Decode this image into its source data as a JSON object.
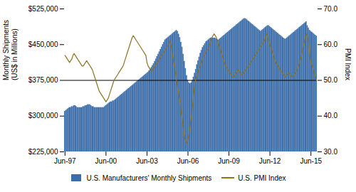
{
  "chart_data": {
    "type": "bar",
    "ylabel": "Monthly Shipments\n(US$ in Millions)",
    "y2label": "PMI Index",
    "ylim": [
      225000,
      525000
    ],
    "yticks": [
      {
        "value": 225000,
        "label": "$225,000"
      },
      {
        "value": 300000,
        "label": "$300,000"
      },
      {
        "value": 375000,
        "label": "$375,000"
      },
      {
        "value": 450000,
        "label": "$450,000"
      },
      {
        "value": 525000,
        "label": "$525,000"
      }
    ],
    "y2lim": [
      30.0,
      70.0
    ],
    "y2ticks": [
      {
        "value": 30.0,
        "label": "30.0"
      },
      {
        "value": 40.0,
        "label": "40.0"
      },
      {
        "value": 50.0,
        "label": "50.0"
      },
      {
        "value": 60.0,
        "label": "60.0"
      },
      {
        "value": 70.0,
        "label": "70.0"
      }
    ],
    "legend": "bottom",
    "reference_line": {
      "y": 375000,
      "color": "#000000"
    },
    "categories": [
      "Jun-97",
      null,
      null,
      null,
      null,
      null,
      null,
      null,
      null,
      null,
      null,
      null,
      null,
      null,
      null,
      null,
      null,
      null,
      null,
      null,
      null,
      null,
      null,
      null,
      null,
      null,
      null,
      null,
      null,
      null,
      null,
      null,
      null,
      null,
      null,
      null,
      "Jun-00",
      null,
      null,
      null,
      null,
      null,
      null,
      null,
      null,
      null,
      null,
      null,
      null,
      null,
      null,
      null,
      null,
      null,
      null,
      null,
      null,
      null,
      null,
      null,
      null,
      null,
      null,
      null,
      null,
      null,
      null,
      null,
      null,
      null,
      null,
      null,
      "Jun-03",
      null,
      null,
      null,
      null,
      null,
      null,
      null,
      null,
      null,
      null,
      null,
      null,
      null,
      null,
      null,
      null,
      null,
      null,
      null,
      null,
      null,
      null,
      null,
      null,
      null,
      null,
      null,
      null,
      null,
      null,
      null,
      null,
      null,
      null,
      null,
      "Jun-06",
      null,
      null,
      null,
      null,
      null,
      null,
      null,
      null,
      null,
      null,
      null,
      null,
      null,
      null,
      null,
      null,
      null,
      null,
      null,
      null,
      null,
      null,
      null,
      null,
      null,
      null,
      null,
      null,
      null,
      null,
      null,
      null,
      null,
      null,
      null,
      "Jun-09",
      null,
      null,
      null,
      null,
      null,
      null,
      null,
      null,
      null,
      null,
      null,
      null,
      null,
      null,
      null,
      null,
      null,
      null,
      null,
      null,
      null,
      null,
      null,
      null,
      null,
      null,
      null,
      null,
      null,
      null,
      null,
      null,
      null,
      null,
      null,
      "Jun-12",
      null,
      null,
      null,
      null,
      null,
      null,
      null,
      null,
      null,
      null,
      null,
      null,
      null,
      null,
      null,
      null,
      null,
      null,
      null,
      null,
      null,
      null,
      null,
      null,
      null,
      null,
      null,
      null,
      null,
      null,
      null,
      null,
      null,
      null,
      null,
      "Jun-15",
      null,
      null,
      null,
      null,
      null
    ],
    "series": [
      {
        "name": "U.S. Manufacturers' Monthly Shipments",
        "type": "bar",
        "color": "#3A6DAB",
        "values": [
          310000,
          312000,
          314000,
          316000,
          318000,
          318000,
          320000,
          320000,
          322000,
          322000,
          320000,
          318000,
          318000,
          318000,
          318000,
          318000,
          320000,
          320000,
          322000,
          322000,
          324000,
          324000,
          324000,
          322000,
          320000,
          320000,
          318000,
          318000,
          318000,
          318000,
          318000,
          318000,
          318000,
          318000,
          318000,
          320000,
          322000,
          324000,
          326000,
          328000,
          330000,
          330000,
          332000,
          332000,
          334000,
          336000,
          338000,
          340000,
          342000,
          344000,
          346000,
          348000,
          350000,
          352000,
          354000,
          356000,
          358000,
          360000,
          362000,
          364000,
          366000,
          368000,
          370000,
          372000,
          374000,
          376000,
          378000,
          380000,
          382000,
          384000,
          386000,
          388000,
          390000,
          392000,
          395000,
          398000,
          402000,
          406000,
          410000,
          415000,
          420000,
          425000,
          430000,
          435000,
          440000,
          445000,
          450000,
          455000,
          460000,
          462000,
          464000,
          466000,
          468000,
          470000,
          472000,
          474000,
          476000,
          478000,
          480000,
          478000,
          472000,
          465000,
          455000,
          445000,
          430000,
          415000,
          400000,
          385000,
          375000,
          370000,
          368000,
          370000,
          375000,
          382000,
          390000,
          398000,
          408000,
          416000,
          424000,
          432000,
          438000,
          444000,
          448000,
          452000,
          456000,
          458000,
          460000,
          462000,
          464000,
          464000,
          464000,
          464000,
          464000,
          462000,
          460000,
          460000,
          462000,
          464000,
          466000,
          468000,
          470000,
          472000,
          474000,
          476000,
          478000,
          480000,
          482000,
          484000,
          486000,
          488000,
          490000,
          492000,
          494000,
          496000,
          498000,
          500000,
          502000,
          504000,
          505000,
          504000,
          502000,
          500000,
          498000,
          496000,
          494000,
          492000,
          490000,
          488000,
          486000,
          484000,
          482000,
          480000,
          478000,
          480000,
          482000,
          484000,
          486000,
          488000,
          490000,
          490000,
          488000,
          486000,
          484000,
          482000,
          480000,
          478000,
          476000,
          474000,
          472000,
          470000,
          468000,
          466000,
          464000,
          462000,
          462000,
          464000,
          466000,
          468000,
          470000,
          472000,
          474000,
          476000,
          478000,
          480000,
          482000,
          484000,
          486000,
          488000,
          490000,
          492000,
          494000,
          496000,
          498000,
          490000,
          485000,
          480000,
          478000,
          476000,
          474000,
          472000,
          470000,
          468000
        ]
      },
      {
        "name": "U.S. PMI Index",
        "type": "line",
        "axis": "y2",
        "color": "#8B7322",
        "values": [
          57.0,
          56.5,
          56.0,
          55.5,
          55.0,
          55.5,
          56.0,
          57.0,
          57.5,
          57.0,
          56.5,
          56.0,
          55.5,
          55.0,
          54.5,
          54.0,
          54.0,
          54.5,
          55.0,
          55.5,
          55.0,
          54.5,
          54.0,
          53.5,
          53.0,
          52.0,
          51.0,
          50.0,
          49.0,
          48.0,
          47.0,
          46.5,
          46.0,
          45.5,
          45.0,
          44.5,
          44.0,
          44.5,
          45.0,
          46.0,
          47.0,
          48.0,
          49.0,
          50.0,
          50.5,
          51.0,
          51.5,
          52.0,
          52.5,
          53.0,
          53.5,
          54.0,
          55.0,
          56.0,
          57.0,
          58.0,
          59.0,
          60.0,
          61.0,
          62.0,
          62.5,
          62.0,
          61.5,
          61.0,
          60.5,
          60.0,
          59.5,
          59.0,
          58.5,
          58.0,
          57.5,
          57.0,
          55.0,
          54.0,
          53.5,
          53.0,
          52.5,
          53.0,
          53.5,
          54.0,
          54.5,
          55.0,
          55.5,
          56.0,
          56.5,
          57.0,
          57.5,
          58.0,
          58.5,
          59.0,
          59.5,
          60.0,
          61.0,
          60.0,
          58.0,
          56.0,
          54.0,
          52.0,
          50.0,
          48.0,
          46.0,
          44.0,
          41.0,
          39.0,
          36.5,
          34.0,
          33.0,
          32.5,
          33.5,
          35.0,
          37.5,
          40.0,
          43.0,
          46.0,
          49.0,
          50.5,
          51.5,
          52.5,
          53.5,
          54.0,
          55.0,
          56.0,
          57.0,
          57.5,
          58.0,
          58.5,
          59.0,
          60.0,
          61.0,
          62.0,
          62.5,
          63.0,
          62.5,
          62.0,
          61.0,
          60.0,
          59.0,
          58.0,
          57.0,
          56.0,
          55.0,
          54.0,
          53.5,
          53.0,
          52.5,
          52.0,
          51.5,
          51.0,
          51.0,
          51.5,
          52.0,
          52.5,
          53.0,
          52.5,
          52.0,
          51.5,
          51.5,
          52.0,
          52.5,
          53.0,
          53.5,
          54.0,
          54.5,
          55.0,
          55.5,
          56.0,
          56.5,
          57.0,
          57.5,
          58.0,
          58.5,
          59.0,
          59.5,
          60.0,
          60.5,
          61.0,
          62.0,
          63.0,
          62.0,
          61.0,
          60.0,
          59.0,
          58.0,
          57.0,
          56.0,
          55.0,
          54.5,
          54.0,
          53.5,
          53.0,
          52.5,
          52.0,
          51.5,
          51.0,
          51.0,
          51.5,
          52.0,
          52.0,
          51.5,
          51.0,
          51.0,
          51.5,
          52.0,
          52.5,
          53.0,
          54.0,
          55.0,
          56.0,
          57.5,
          59.0,
          60.5,
          62.0,
          63.0,
          62.0,
          61.0,
          57.0,
          55.0,
          54.0,
          53.0,
          52.0,
          51.0,
          50.0
        ]
      }
    ]
  }
}
